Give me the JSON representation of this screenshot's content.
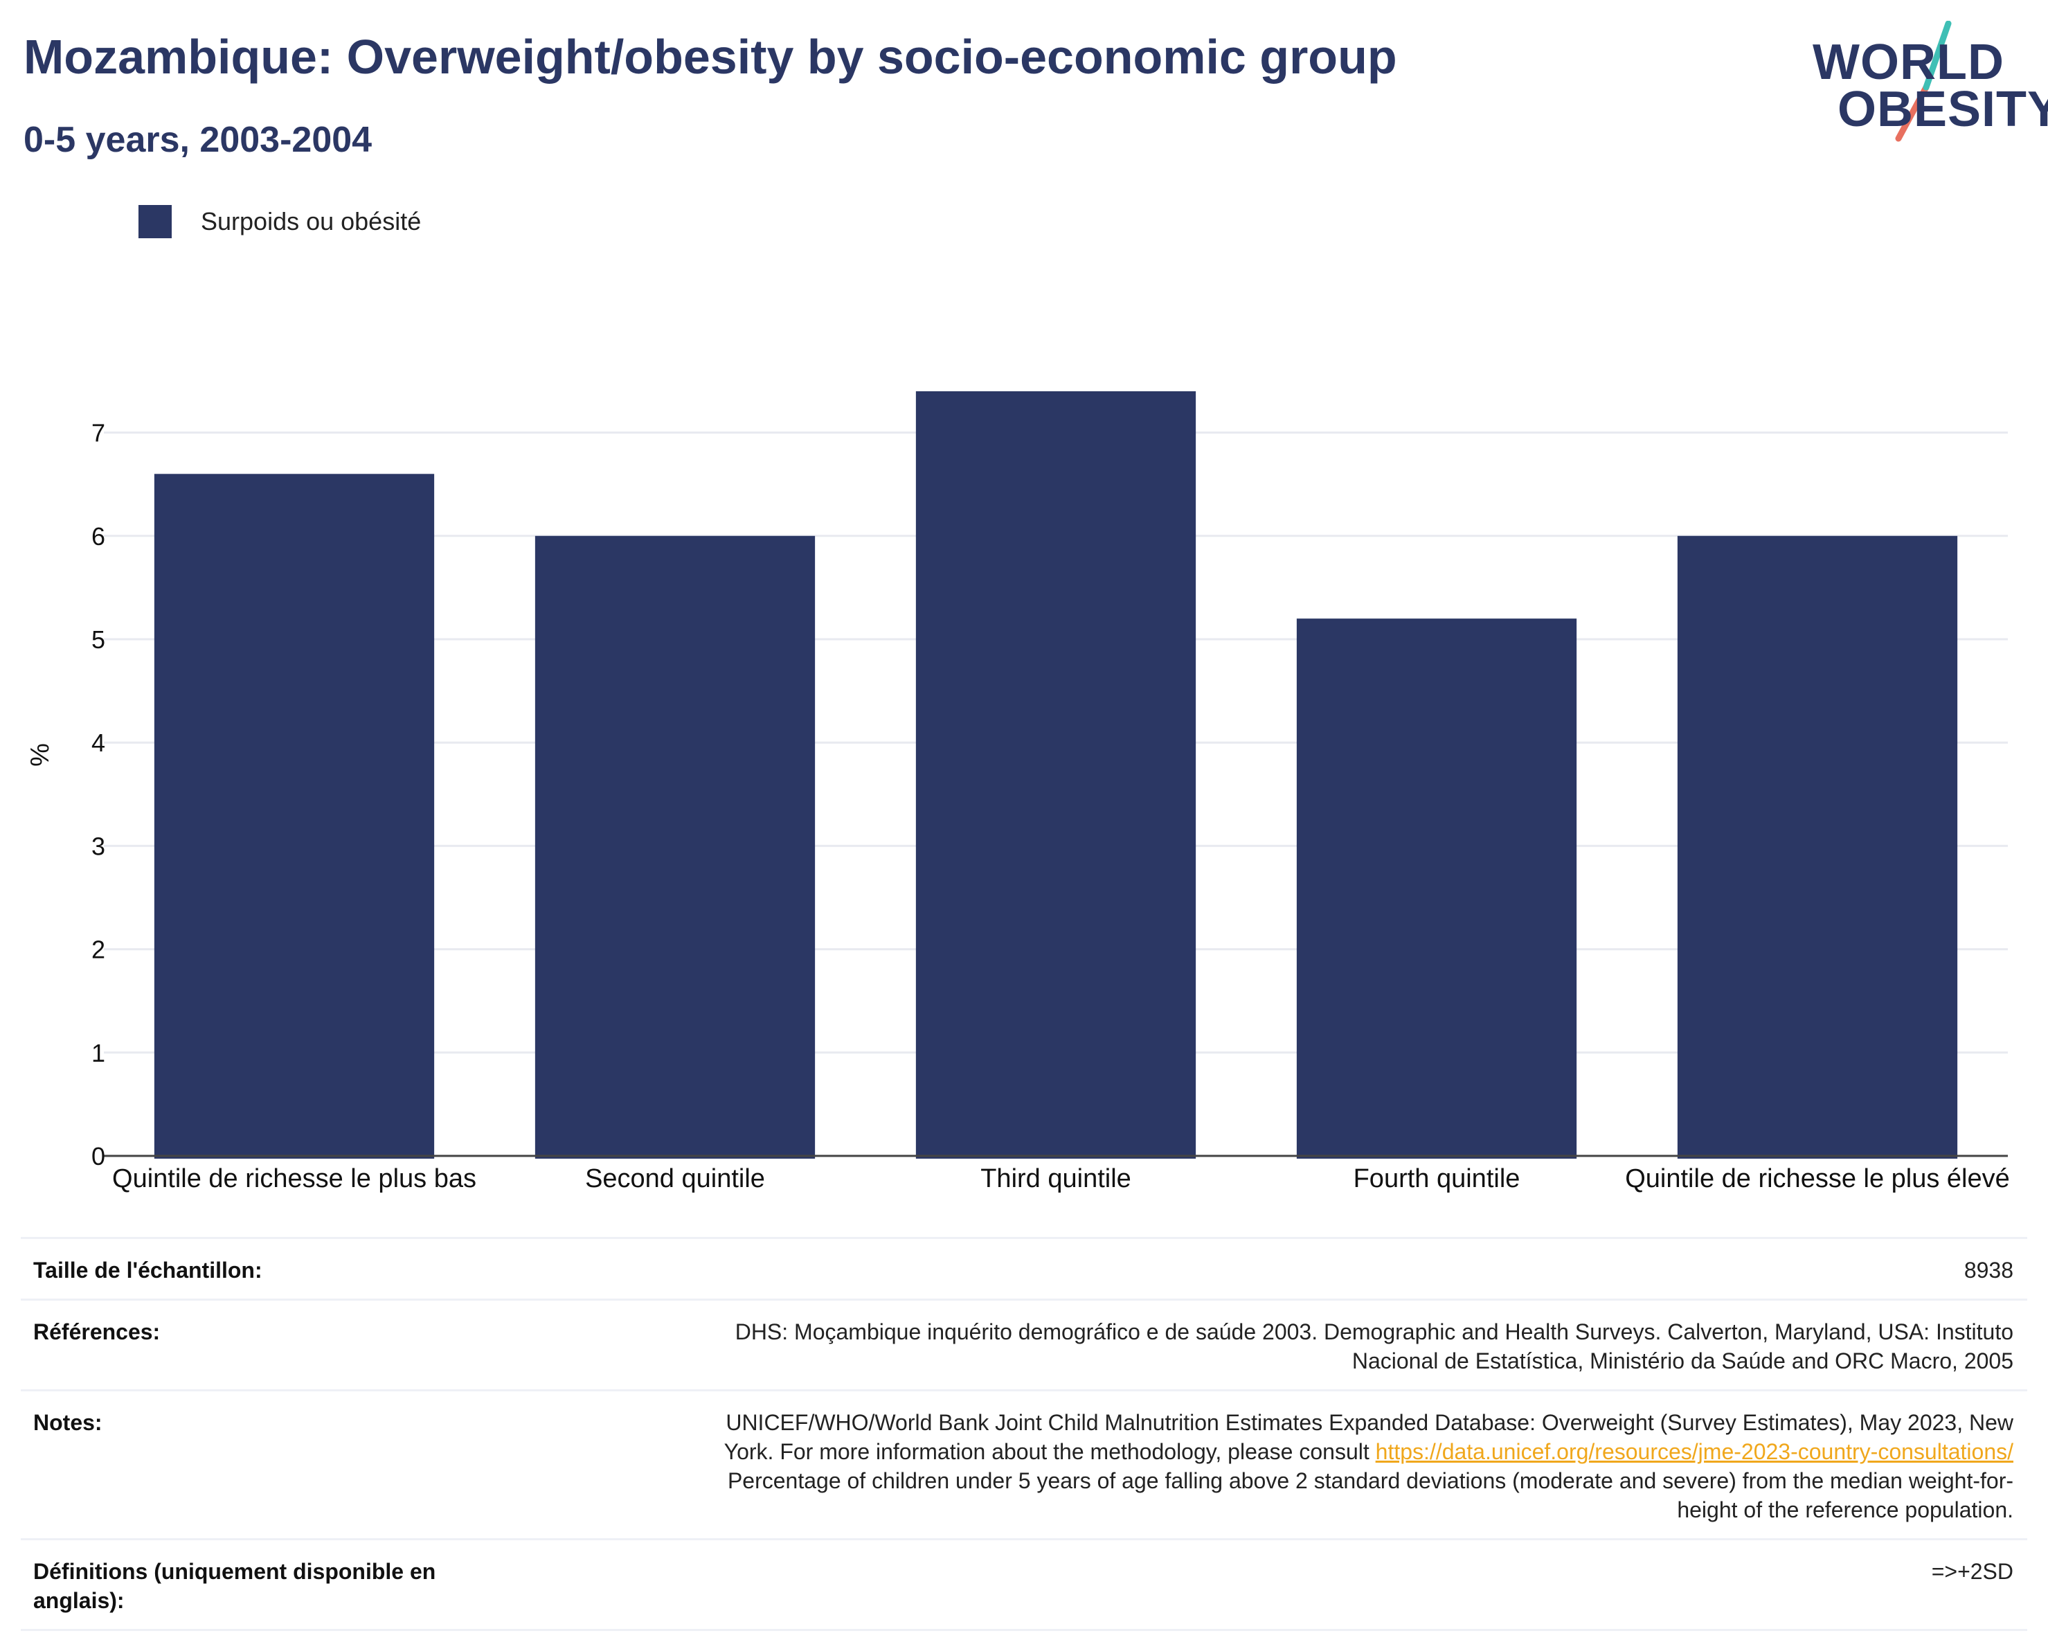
{
  "header": {
    "title": "Mozambique: Overweight/obesity by socio-economic group",
    "subtitle": "0-5 years, 2003-2004"
  },
  "logo": {
    "line1": "WORLD",
    "line2": "OBESITY",
    "colors": {
      "text": "#2b3764",
      "slash_top": "#3fbfb5",
      "slash_bottom": "#e8705f"
    }
  },
  "legend": {
    "items": [
      {
        "label": "Surpoids ou obésité",
        "color": "#2b3764"
      }
    ]
  },
  "chart_data": {
    "type": "bar",
    "categories": [
      "Quintile de richesse le plus bas",
      "Second quintile",
      "Third quintile",
      "Fourth quintile",
      "Quintile de richesse le plus élevé"
    ],
    "series": [
      {
        "name": "Surpoids ou obésité",
        "values": [
          6.6,
          6.0,
          7.4,
          5.2,
          6.0
        ],
        "color": "#2b3764"
      }
    ],
    "title": "",
    "xlabel": "",
    "ylabel": "%",
    "ylim": [
      0,
      7.4
    ],
    "yticks": [
      0,
      1,
      2,
      3,
      4,
      5,
      6,
      7
    ],
    "grid": true,
    "legend_position": "top-left"
  },
  "info": {
    "sample": {
      "label": "Taille de l'échantillon:",
      "value": "8938"
    },
    "references": {
      "label": "Références:",
      "line1": "DHS: Moçambique inquérito demográfico e de saúde 2003. Demographic and Health Surveys. Calverton, Maryland, USA: Instituto",
      "line2": "Nacional de Estatística, Ministério da Saúde and ORC Macro, 2005"
    },
    "notes": {
      "label": "Notes:",
      "line1": "UNICEF/WHO/World Bank Joint Child Malnutrition Estimates Expanded Database: Overweight (Survey Estimates), May 2023, New",
      "line2_prefix": "York. For more information about the methodology, please consult ",
      "link": "https://data.unicef.org/resources/jme-2023-country-consultations/",
      "line3": "Percentage of children under 5 years of age falling above 2 standard deviations (moderate and severe) from the median weight-for-",
      "line4": "height of the reference population."
    },
    "definitions": {
      "label": "Définitions (uniquement disponible en anglais):",
      "value": "=>+2SD"
    }
  }
}
